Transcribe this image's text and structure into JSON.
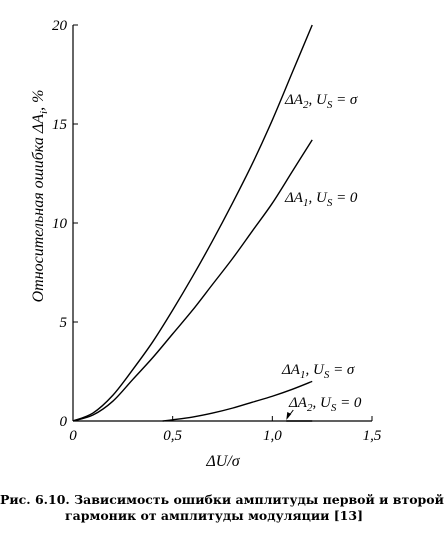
{
  "chart_data": {
    "type": "line",
    "xlabel": "ΔU/σ",
    "ylabel": "Относительная ошибка ΔA",
    "ylabel_sub": "i",
    "ylabel_suffix": ", %",
    "xlim": [
      0,
      1.5
    ],
    "ylim": [
      0,
      20
    ],
    "x_ticks": [
      0,
      0.5,
      1.0,
      1.5
    ],
    "x_tick_labels": [
      "0",
      "0,5",
      "1,0",
      "1,5"
    ],
    "y_ticks": [
      0,
      5,
      10,
      15,
      20
    ],
    "y_tick_labels": [
      "0",
      "5",
      "10",
      "15",
      "20"
    ],
    "grid": false,
    "series": [
      {
        "name": "ΔA2, US = σ",
        "label_parts": {
          "base": "ΔA",
          "sub": "2",
          "mid": ", U",
          "sub2": "S",
          "tail": " = σ"
        },
        "x": [
          0,
          0.1,
          0.2,
          0.3,
          0.4,
          0.5,
          0.6,
          0.7,
          0.8,
          0.9,
          1.0,
          1.1,
          1.2
        ],
        "y": [
          0,
          0.4,
          1.3,
          2.6,
          4.0,
          5.6,
          7.3,
          9.1,
          11.0,
          13.0,
          15.2,
          17.6,
          20.0
        ]
      },
      {
        "name": "ΔA1, US = 0",
        "label_parts": {
          "base": "ΔA",
          "sub": "1",
          "mid": ", U",
          "sub2": "S",
          "tail": " = 0"
        },
        "x": [
          0,
          0.1,
          0.2,
          0.3,
          0.4,
          0.5,
          0.6,
          0.7,
          0.8,
          0.9,
          1.0,
          1.1,
          1.2
        ],
        "y": [
          0,
          0.3,
          1.0,
          2.1,
          3.2,
          4.4,
          5.6,
          6.9,
          8.2,
          9.6,
          11.0,
          12.6,
          14.2
        ]
      },
      {
        "name": "ΔA1, US = σ",
        "label_parts": {
          "base": "ΔA",
          "sub": "1",
          "mid": ", U",
          "sub2": "S",
          "tail": " = σ"
        },
        "x": [
          0.45,
          0.5,
          0.6,
          0.7,
          0.8,
          0.9,
          1.0,
          1.1,
          1.2
        ],
        "y": [
          0,
          0.06,
          0.2,
          0.4,
          0.65,
          0.95,
          1.25,
          1.6,
          2.0
        ]
      },
      {
        "name": "ΔA2, US = 0",
        "label_parts": {
          "base": "ΔA",
          "sub": "2",
          "mid": ", U",
          "sub2": "S",
          "tail": " = 0"
        },
        "x": [
          1.07,
          1.2
        ],
        "y": [
          0,
          0
        ]
      }
    ]
  },
  "caption": {
    "line1": "Рис. 6.10. Зависимость ошибки амплитуды первой и второй",
    "line2": "гармоник от амплитуды модуляции [13]"
  }
}
